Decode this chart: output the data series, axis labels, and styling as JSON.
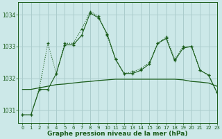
{
  "title": "Graphe pression niveau de la mer (hPa)",
  "bg_color": "#cce8e8",
  "grid_color": "#aacccc",
  "line_color": "#1a5c1a",
  "xlim": [
    -0.5,
    23
  ],
  "ylim": [
    1030.6,
    1034.4
  ],
  "yticks": [
    1031,
    1032,
    1033,
    1034
  ],
  "xticks": [
    0,
    1,
    2,
    3,
    4,
    5,
    6,
    7,
    8,
    9,
    10,
    11,
    12,
    13,
    14,
    15,
    16,
    17,
    18,
    19,
    20,
    21,
    22,
    23
  ],
  "line1_x": [
    0,
    1,
    2,
    3,
    4,
    5,
    6,
    7,
    8,
    9,
    10,
    11,
    12,
    13,
    14,
    15,
    16,
    17,
    18,
    19,
    20,
    21,
    22,
    23
  ],
  "line1_y": [
    1030.85,
    1030.85,
    1031.7,
    1033.1,
    1032.15,
    1033.1,
    1033.1,
    1033.55,
    1034.1,
    1033.95,
    1033.35,
    1032.6,
    1032.15,
    1032.2,
    1032.3,
    1032.5,
    1033.1,
    1033.3,
    1032.6,
    1033.0,
    1033.0,
    1032.25,
    1032.1,
    1031.55
  ],
  "line2_x": [
    0,
    1,
    2,
    3,
    4,
    5,
    6,
    7,
    8,
    9,
    10,
    11,
    12,
    13,
    14,
    15,
    16,
    17,
    18,
    19,
    20,
    21,
    22,
    23
  ],
  "line2_y": [
    1030.85,
    1030.85,
    1031.65,
    1031.65,
    1032.15,
    1033.05,
    1033.05,
    1033.35,
    1034.05,
    1033.9,
    1033.4,
    1032.6,
    1032.15,
    1032.15,
    1032.25,
    1032.45,
    1033.1,
    1033.25,
    1032.55,
    1032.95,
    1033.0,
    1032.25,
    1032.1,
    1031.55
  ],
  "line3_x": [
    0,
    1,
    2,
    3,
    4,
    5,
    6,
    7,
    8,
    9,
    10,
    11,
    12,
    13,
    14,
    15,
    16,
    17,
    18,
    19,
    20,
    21,
    22,
    23
  ],
  "line3_y": [
    1031.65,
    1031.65,
    1031.7,
    1031.75,
    1031.8,
    1031.82,
    1031.85,
    1031.88,
    1031.9,
    1031.93,
    1031.95,
    1031.97,
    1031.97,
    1031.97,
    1031.97,
    1031.97,
    1031.97,
    1031.97,
    1031.97,
    1031.95,
    1031.9,
    1031.88,
    1031.85,
    1031.75
  ]
}
